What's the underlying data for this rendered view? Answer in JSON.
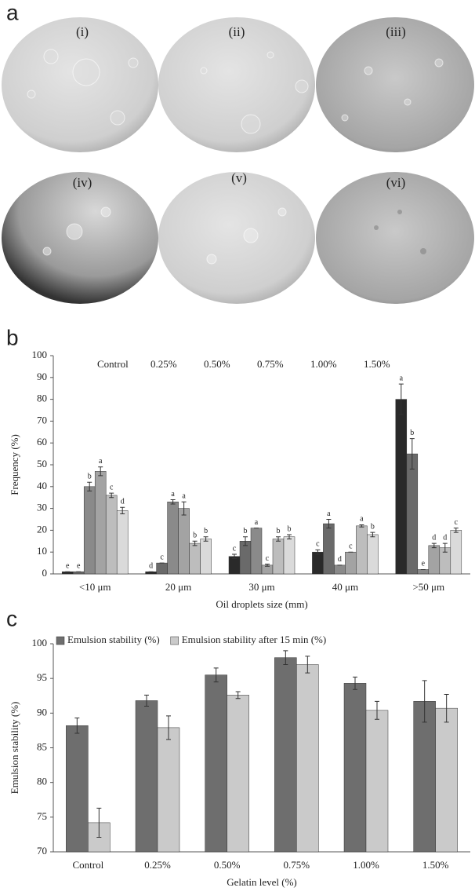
{
  "figure": {
    "panel_labels": [
      "a",
      "b",
      "c"
    ],
    "image_labels": [
      "(i)",
      "(ii)",
      "(iii)",
      "(iv)",
      "(v)",
      "(vi)"
    ]
  },
  "chart_data": [
    {
      "type": "bar",
      "legend": "top",
      "legend_swatches": false,
      "xlabel": "Oil droplets size (mm)",
      "ylabel": "Frequency (%)",
      "categories": [
        "<10 μm",
        "20 μm",
        "30 μm",
        "40 μm",
        ">50 μm"
      ],
      "ylim": [
        0,
        100
      ],
      "yticks": [
        0,
        10,
        20,
        30,
        40,
        50,
        60,
        70,
        80,
        90,
        100
      ],
      "series": [
        {
          "name": "Control",
          "color": "#2a2a2a",
          "values": [
            1,
            1,
            8,
            10,
            80
          ],
          "errors": [
            0,
            0,
            1,
            1,
            7
          ],
          "letters": [
            "e",
            "d",
            "c",
            "c",
            "a"
          ]
        },
        {
          "name": "0.25%",
          "color": "#6a6a6a",
          "values": [
            1,
            5,
            15,
            23,
            55
          ],
          "errors": [
            0,
            0,
            2,
            2,
            7
          ],
          "letters": [
            "e",
            "c",
            "b",
            "a",
            "b"
          ]
        },
        {
          "name": "0.50%",
          "color": "#8a8a8a",
          "values": [
            40,
            33,
            21,
            4,
            2
          ],
          "errors": [
            2,
            1,
            0,
            0,
            0
          ],
          "letters": [
            "b",
            "a",
            "a",
            "d",
            "e"
          ]
        },
        {
          "name": "0.75%",
          "color": "#a3a3a3",
          "values": [
            47,
            30,
            4,
            10,
            13
          ],
          "errors": [
            2,
            3,
            0.5,
            0,
            1
          ],
          "letters": [
            "a",
            "a",
            "c",
            "c",
            "d"
          ]
        },
        {
          "name": "1.00%",
          "color": "#bdbdbd",
          "values": [
            36,
            14,
            16,
            22,
            12
          ],
          "errors": [
            1,
            1,
            1,
            0.5,
            2
          ],
          "letters": [
            "c",
            "b",
            "b",
            "a",
            "d"
          ]
        },
        {
          "name": "1.50%",
          "color": "#dadada",
          "values": [
            29,
            16,
            17,
            18,
            20
          ],
          "errors": [
            1.5,
            1,
            1,
            1,
            1
          ],
          "letters": [
            "d",
            "b",
            "b",
            "b",
            "c"
          ]
        }
      ]
    },
    {
      "type": "bar",
      "legend": "top-left",
      "legend_swatches": true,
      "xlabel": "Gelatin level (%)",
      "ylabel": "Emulsion stability (%)",
      "categories": [
        "Control",
        "0.25%",
        "0.50%",
        "0.75%",
        "1.00%",
        "1.50%"
      ],
      "ylim": [
        70,
        100
      ],
      "yticks": [
        70,
        75,
        80,
        85,
        90,
        95,
        100
      ],
      "series": [
        {
          "name": "Emulsion stability (%)",
          "color": "#6e6e6e",
          "values": [
            88.2,
            91.8,
            95.5,
            98,
            94.3,
            91.7
          ],
          "errors": [
            1.1,
            0.8,
            1,
            1,
            0.9,
            3
          ]
        },
        {
          "name": "Emulsion stability after 15 min (%)",
          "color": "#cacaca",
          "values": [
            74.2,
            87.9,
            92.6,
            97,
            90.4,
            90.7
          ],
          "errors": [
            2.1,
            1.7,
            0.5,
            1.2,
            1.3,
            2
          ]
        }
      ]
    }
  ]
}
